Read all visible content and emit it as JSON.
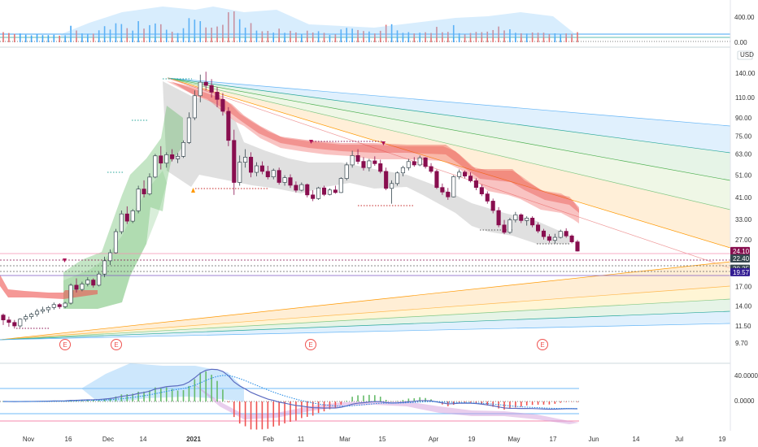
{
  "chart_data": {
    "type": "candlestick",
    "currency_label": "USD",
    "colors": {
      "up": "#ffffff",
      "down": "#880e4f",
      "ema_band": "#ef5350",
      "ichimoku_green": "#4caf50",
      "cloud_grey": "#9e9e9e",
      "fan_blue": "#90caf9",
      "fan_green": "#a5d6a7",
      "fan_orange": "#ffcc80",
      "macd_blue": "#2196f3",
      "macd_purple": "#7b1fa2"
    },
    "x_ticks": [
      "Nov",
      "16",
      "Dec",
      "14",
      "2021",
      "Feb",
      "11",
      "Mar",
      "15",
      "Apr",
      "19",
      "May",
      "17",
      "Jun",
      "14",
      "Jul",
      "19"
    ],
    "price_scale": "log",
    "price_ticks": [
      "140.00",
      "110.00",
      "90.00",
      "75.00",
      "63.00",
      "51.00",
      "41.00",
      "33.00",
      "27.00",
      "17.00",
      "14.00",
      "11.50",
      "9.70"
    ],
    "price_tags": [
      {
        "label": "24.10",
        "color": "#880e4f"
      },
      {
        "label": "22.40",
        "color": "#37474f"
      },
      {
        "label": "20.25",
        "color": "#37474f"
      },
      {
        "label": "19.57",
        "color": "#311b92"
      }
    ],
    "volume_ticks": [
      "400.00",
      "0.00"
    ],
    "macd_ticks": [
      "40.0000",
      "0.0000"
    ],
    "earnings_markers": [
      "E",
      "E",
      "E",
      "E"
    ],
    "candles": [
      [
        12.8,
        13.0,
        11.6,
        12.2
      ],
      [
        12.2,
        12.6,
        11.4,
        11.9
      ],
      [
        11.9,
        12.2,
        11.2,
        11.5
      ],
      [
        11.5,
        12.4,
        11.3,
        12.3
      ],
      [
        12.3,
        12.9,
        12.0,
        12.6
      ],
      [
        12.6,
        13.1,
        12.3,
        12.9
      ],
      [
        12.9,
        13.6,
        12.6,
        13.3
      ],
      [
        13.3,
        13.9,
        13.0,
        13.5
      ],
      [
        13.5,
        14.0,
        13.1,
        13.8
      ],
      [
        13.8,
        14.5,
        13.5,
        14.2
      ],
      [
        14.2,
        14.4,
        13.6,
        13.9
      ],
      [
        13.9,
        14.6,
        13.7,
        14.4
      ],
      [
        14.4,
        17.5,
        14.2,
        17.2
      ],
      [
        17.2,
        18.4,
        16.0,
        16.5
      ],
      [
        16.5,
        17.8,
        16.2,
        17.4
      ],
      [
        17.4,
        18.6,
        17.0,
        18.1
      ],
      [
        18.1,
        18.4,
        16.8,
        17.2
      ],
      [
        17.2,
        19.6,
        17.0,
        19.2
      ],
      [
        19.2,
        22.8,
        18.6,
        21.9
      ],
      [
        21.9,
        24.5,
        21.0,
        23.7
      ],
      [
        23.7,
        30.0,
        23.5,
        29.2
      ],
      [
        29.2,
        36.0,
        28.5,
        34.8
      ],
      [
        34.8,
        37.5,
        31.5,
        32.4
      ],
      [
        32.4,
        36.5,
        31.8,
        35.9
      ],
      [
        35.9,
        46.0,
        35.0,
        44.5
      ],
      [
        44.5,
        48.5,
        41.0,
        42.4
      ],
      [
        42.4,
        52.0,
        41.8,
        50.1
      ],
      [
        50.1,
        63.0,
        49.5,
        61.8
      ],
      [
        61.8,
        68.0,
        54.0,
        57.5
      ],
      [
        57.5,
        64.0,
        55.0,
        62.5
      ],
      [
        62.5,
        66.0,
        58.5,
        60.0
      ],
      [
        60.0,
        63.5,
        57.5,
        61.5
      ],
      [
        61.5,
        72.0,
        60.5,
        70.5
      ],
      [
        70.5,
        95.0,
        69.5,
        90.0
      ],
      [
        90.0,
        118.0,
        88.0,
        112.0
      ],
      [
        112.0,
        138.0,
        105.0,
        128.0
      ],
      [
        128.0,
        142.0,
        118.0,
        124.0
      ],
      [
        124.0,
        132.0,
        110.0,
        116.0
      ],
      [
        116.0,
        122.0,
        100.0,
        108.0
      ],
      [
        108.0,
        115.0,
        92.0,
        96.0
      ],
      [
        96.0,
        100.0,
        68.0,
        72.0
      ],
      [
        72.0,
        80.0,
        42.0,
        47.5
      ],
      [
        47.5,
        62.0,
        46.0,
        58.0
      ],
      [
        58.0,
        66.0,
        55.0,
        61.0
      ],
      [
        61.0,
        64.0,
        50.0,
        52.5
      ],
      [
        52.5,
        58.0,
        50.5,
        56.0
      ],
      [
        56.0,
        58.5,
        51.5,
        53.0
      ],
      [
        53.0,
        56.0,
        49.0,
        50.2
      ],
      [
        50.2,
        54.5,
        49.0,
        53.5
      ],
      [
        53.5,
        55.0,
        46.5,
        47.5
      ],
      [
        47.5,
        51.0,
        46.0,
        49.8
      ],
      [
        49.8,
        51.5,
        45.0,
        46.2
      ],
      [
        46.2,
        48.0,
        43.0,
        44.0
      ],
      [
        44.0,
        47.5,
        43.5,
        46.5
      ],
      [
        46.5,
        47.0,
        41.0,
        42.0
      ],
      [
        42.0,
        44.0,
        39.5,
        40.5
      ],
      [
        40.5,
        45.5,
        40.0,
        45.0
      ],
      [
        45.0,
        46.0,
        41.5,
        42.2
      ],
      [
        42.2,
        44.8,
        41.8,
        44.1
      ],
      [
        44.1,
        46.0,
        42.5,
        43.0
      ],
      [
        43.0,
        50.0,
        42.8,
        49.4
      ],
      [
        49.4,
        58.0,
        48.5,
        56.5
      ],
      [
        56.5,
        65.0,
        55.0,
        62.0
      ],
      [
        62.0,
        66.0,
        57.0,
        58.5
      ],
      [
        58.5,
        61.0,
        53.5,
        55.0
      ],
      [
        55.0,
        60.0,
        53.0,
        58.8
      ],
      [
        58.8,
        61.5,
        56.0,
        57.2
      ],
      [
        57.2,
        59.5,
        52.0,
        53.0
      ],
      [
        53.0,
        55.0,
        44.0,
        44.8
      ],
      [
        44.8,
        48.5,
        38.5,
        47.0
      ],
      [
        47.0,
        53.0,
        46.0,
        52.2
      ],
      [
        52.2,
        56.0,
        50.5,
        55.0
      ],
      [
        55.0,
        60.0,
        53.5,
        58.4
      ],
      [
        58.4,
        61.0,
        55.5,
        56.5
      ],
      [
        56.5,
        62.0,
        55.8,
        60.6
      ],
      [
        60.6,
        61.0,
        54.5,
        55.6
      ],
      [
        55.6,
        57.5,
        52.0,
        53.0
      ],
      [
        53.0,
        54.0,
        44.5,
        45.2
      ],
      [
        45.2,
        47.0,
        42.0,
        43.2
      ],
      [
        43.2,
        45.0,
        40.0,
        41.2
      ],
      [
        41.2,
        51.0,
        41.0,
        50.3
      ],
      [
        50.3,
        54.0,
        49.0,
        52.6
      ],
      [
        52.6,
        53.5,
        49.5,
        50.6
      ],
      [
        50.6,
        52.5,
        47.5,
        48.3
      ],
      [
        48.3,
        49.5,
        44.0,
        45.2
      ],
      [
        45.2,
        46.5,
        41.5,
        42.4
      ],
      [
        42.4,
        43.5,
        38.5,
        39.5
      ],
      [
        39.5,
        40.5,
        35.0,
        36.0
      ],
      [
        36.0,
        37.2,
        30.5,
        31.2
      ],
      [
        31.2,
        32.8,
        28.5,
        29.0
      ],
      [
        29.0,
        33.5,
        28.6,
        32.8
      ],
      [
        32.8,
        35.5,
        32.0,
        34.5
      ],
      [
        34.5,
        35.0,
        31.8,
        32.6
      ],
      [
        32.6,
        34.0,
        31.0,
        33.4
      ],
      [
        33.4,
        34.0,
        30.5,
        31.2
      ],
      [
        31.2,
        32.0,
        28.8,
        29.4
      ],
      [
        29.4,
        30.0,
        27.0,
        27.8
      ],
      [
        27.8,
        28.5,
        26.2,
        26.8
      ],
      [
        26.8,
        28.6,
        26.0,
        27.6
      ],
      [
        27.6,
        29.8,
        27.3,
        29.3
      ],
      [
        29.3,
        30.2,
        27.5,
        28.0
      ],
      [
        28.0,
        28.4,
        26.0,
        26.4
      ],
      [
        26.4,
        26.9,
        24.0,
        24.1
      ]
    ]
  }
}
